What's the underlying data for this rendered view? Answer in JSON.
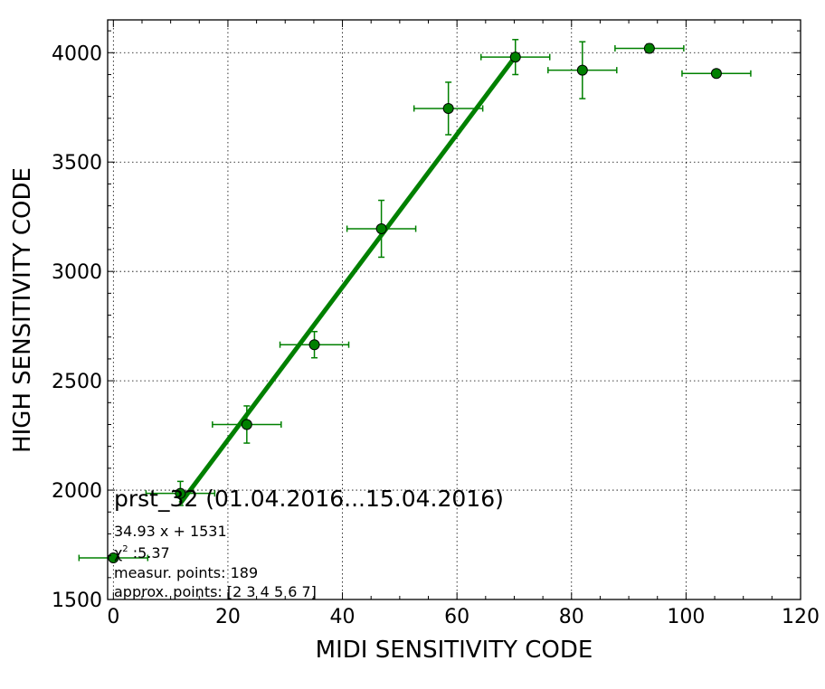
{
  "chart_data": {
    "type": "scatter",
    "title": "prst_32 (01.04.2016...15.04.2016)",
    "xlabel": "MIDI SENSITIVITY CODE",
    "ylabel": "HIGH SENSITIVITY CODE",
    "xlim": [
      -1,
      120
    ],
    "ylim": [
      1500,
      4150
    ],
    "xticks": [
      0,
      20,
      40,
      60,
      80,
      100,
      120
    ],
    "yticks": [
      1500,
      2000,
      2500,
      3000,
      3500,
      4000
    ],
    "grid": true,
    "color": "#008000",
    "points": [
      {
        "x": 0,
        "y": 1690,
        "xerr": 6,
        "yerr": 0
      },
      {
        "x": 11.7,
        "y": 1985,
        "xerr": 6,
        "yerr": 55
      },
      {
        "x": 23.3,
        "y": 2300,
        "xerr": 6,
        "yerr": 85
      },
      {
        "x": 35.1,
        "y": 2665,
        "xerr": 6,
        "yerr": 60
      },
      {
        "x": 46.8,
        "y": 3195,
        "xerr": 6,
        "yerr": 130
      },
      {
        "x": 58.5,
        "y": 3745,
        "xerr": 6,
        "yerr": 120
      },
      {
        "x": 70.2,
        "y": 3980,
        "xerr": 6,
        "yerr": 80
      },
      {
        "x": 81.9,
        "y": 3920,
        "xerr": 6,
        "yerr": 130
      },
      {
        "x": 93.6,
        "y": 4020,
        "xerr": 6,
        "yerr": 20
      },
      {
        "x": 105.3,
        "y": 3905,
        "xerr": 6,
        "yerr": 0
      }
    ],
    "fit": {
      "slope": 34.93,
      "intercept": 1531,
      "x_start": 11.7,
      "x_end": 70.2
    },
    "annotations": {
      "equation": "34.93 x + 1531",
      "chi_symbol": "χ",
      "chi_sup": "2",
      "chi_value": " :5.37",
      "measur_points": "measur. points: 189",
      "approx_points": "approx. points: [2 3 4 5 6 7]"
    }
  }
}
